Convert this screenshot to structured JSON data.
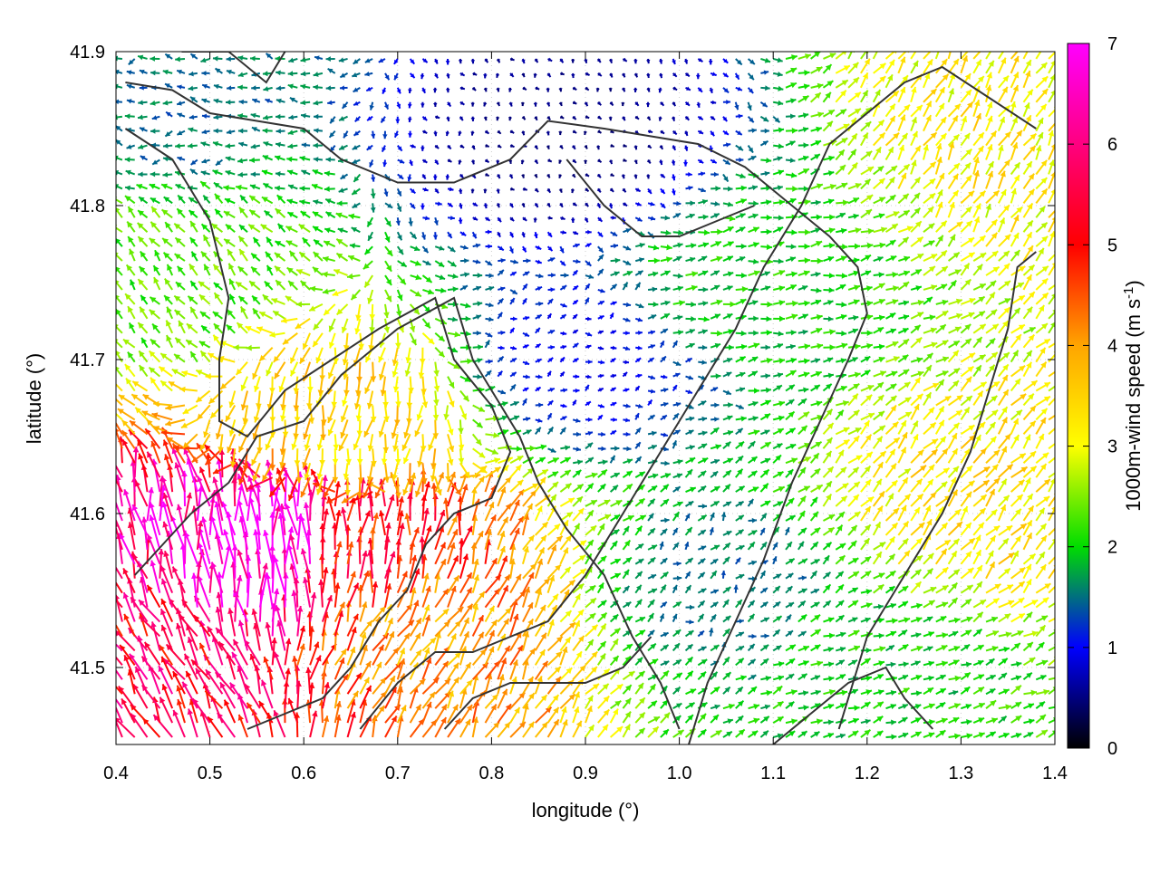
{
  "chart_data": {
    "type": "vector-field",
    "xlabel": "longitude (°)",
    "ylabel": "latitude (°)",
    "xlim": [
      0.4,
      1.4
    ],
    "ylim": [
      41.45,
      41.9
    ],
    "x_ticks": [
      "0.4",
      "0.5",
      "0.6",
      "0.7",
      "0.8",
      "0.9",
      "1.0",
      "1.1",
      "1.2",
      "1.3",
      "1.4"
    ],
    "y_ticks": [
      "41.5",
      "41.6",
      "41.7",
      "41.8",
      "41.9"
    ],
    "grid": true,
    "colorbar": {
      "label": "1000m-wind speed (m s",
      "label_sup": "-1",
      "label_close": ")",
      "range": [
        0,
        7
      ],
      "ticks": [
        "0",
        "1",
        "2",
        "3",
        "4",
        "5",
        "6",
        "7"
      ],
      "colors": [
        "#000000",
        "#0000ff",
        "#00dd00",
        "#ffff00",
        "#ffa500",
        "#ff0000",
        "#ff00ff"
      ]
    },
    "wind_regions": [
      {
        "lon": 0.56,
        "lat": 41.57,
        "speed": 7.0,
        "dir_deg": 95
      },
      {
        "lon": 0.45,
        "lat": 41.5,
        "speed": 5.5,
        "dir_deg": 120
      },
      {
        "lon": 0.66,
        "lat": 41.56,
        "speed": 5.0,
        "dir_deg": 85
      },
      {
        "lon": 0.64,
        "lat": 41.66,
        "speed": 3.5,
        "dir_deg": 260
      },
      {
        "lon": 0.72,
        "lat": 41.52,
        "speed": 4.0,
        "dir_deg": 60
      },
      {
        "lon": 0.9,
        "lat": 41.7,
        "speed": 1.0,
        "dir_deg": 20
      },
      {
        "lon": 0.88,
        "lat": 41.84,
        "speed": 0.5,
        "dir_deg": 300
      },
      {
        "lon": 0.45,
        "lat": 41.75,
        "speed": 2.3,
        "dir_deg": 130
      },
      {
        "lon": 1.05,
        "lat": 41.75,
        "speed": 2.0,
        "dir_deg": 10
      },
      {
        "lon": 1.3,
        "lat": 41.6,
        "speed": 3.3,
        "dir_deg": 50
      },
      {
        "lon": 1.35,
        "lat": 41.85,
        "speed": 3.2,
        "dir_deg": 60
      },
      {
        "lon": 1.05,
        "lat": 41.55,
        "speed": 1.5,
        "dir_deg": 40
      },
      {
        "lon": 1.2,
        "lat": 41.5,
        "speed": 2.0,
        "dir_deg": 20
      },
      {
        "lon": 0.45,
        "lat": 41.87,
        "speed": 1.5,
        "dir_deg": 180
      }
    ],
    "contours": [
      [
        [
          0.41,
          41.88
        ],
        [
          0.46,
          41.875
        ],
        [
          0.5,
          41.86
        ],
        [
          0.55,
          41.855
        ],
        [
          0.6,
          41.85
        ],
        [
          0.64,
          41.83
        ],
        [
          0.7,
          41.815
        ],
        [
          0.76,
          41.815
        ],
        [
          0.82,
          41.83
        ],
        [
          0.86,
          41.855
        ],
        [
          0.92,
          41.85
        ],
        [
          0.97,
          41.845
        ],
        [
          1.02,
          41.84
        ],
        [
          1.07,
          41.825
        ],
        [
          1.12,
          41.8
        ],
        [
          1.16,
          41.78
        ],
        [
          1.19,
          41.76
        ],
        [
          1.2,
          41.73
        ],
        [
          1.18,
          41.7
        ],
        [
          1.15,
          41.66
        ],
        [
          1.12,
          41.62
        ],
        [
          1.09,
          41.57
        ],
        [
          1.06,
          41.53
        ],
        [
          1.03,
          41.49
        ],
        [
          1.01,
          41.45
        ]
      ],
      [
        [
          0.41,
          41.85
        ],
        [
          0.46,
          41.83
        ],
        [
          0.5,
          41.79
        ],
        [
          0.52,
          41.74
        ],
        [
          0.51,
          41.7
        ],
        [
          0.51,
          41.66
        ],
        [
          0.54,
          41.65
        ],
        [
          0.58,
          41.68
        ],
        [
          0.63,
          41.7
        ],
        [
          0.68,
          41.72
        ],
        [
          0.74,
          41.74
        ],
        [
          0.76,
          41.7
        ],
        [
          0.8,
          41.67
        ],
        [
          0.82,
          41.64
        ],
        [
          0.8,
          41.61
        ],
        [
          0.76,
          41.6
        ],
        [
          0.73,
          41.58
        ],
        [
          0.71,
          41.55
        ],
        [
          0.68,
          41.53
        ],
        [
          0.65,
          41.5
        ],
        [
          0.62,
          41.48
        ],
        [
          0.58,
          41.47
        ],
        [
          0.54,
          41.46
        ]
      ],
      [
        [
          0.42,
          41.56
        ],
        [
          0.45,
          41.58
        ],
        [
          0.48,
          41.6
        ],
        [
          0.52,
          41.62
        ],
        [
          0.55,
          41.65
        ],
        [
          0.6,
          41.66
        ],
        [
          0.64,
          41.69
        ],
        [
          0.7,
          41.72
        ],
        [
          0.76,
          41.74
        ],
        [
          0.78,
          41.7
        ],
        [
          0.8,
          41.68
        ],
        [
          0.83,
          41.65
        ],
        [
          0.85,
          41.62
        ],
        [
          0.88,
          41.59
        ],
        [
          0.92,
          41.56
        ],
        [
          0.95,
          41.52
        ],
        [
          0.98,
          41.49
        ],
        [
          1.0,
          41.46
        ]
      ],
      [
        [
          0.66,
          41.46
        ],
        [
          0.7,
          41.49
        ],
        [
          0.74,
          41.51
        ],
        [
          0.78,
          41.51
        ],
        [
          0.82,
          41.52
        ],
        [
          0.86,
          41.53
        ],
        [
          0.9,
          41.56
        ],
        [
          0.94,
          41.6
        ],
        [
          0.98,
          41.64
        ],
        [
          1.02,
          41.68
        ],
        [
          1.06,
          41.72
        ],
        [
          1.09,
          41.76
        ],
        [
          1.13,
          41.8
        ],
        [
          1.16,
          41.84
        ],
        [
          1.2,
          41.86
        ],
        [
          1.24,
          41.88
        ],
        [
          1.28,
          41.89
        ],
        [
          1.33,
          41.87
        ],
        [
          1.38,
          41.85
        ]
      ],
      [
        [
          1.1,
          41.45
        ],
        [
          1.14,
          41.47
        ],
        [
          1.18,
          41.49
        ],
        [
          1.22,
          41.5
        ],
        [
          1.24,
          41.48
        ],
        [
          1.27,
          41.46
        ]
      ],
      [
        [
          1.17,
          41.46
        ],
        [
          1.2,
          41.52
        ],
        [
          1.24,
          41.56
        ],
        [
          1.28,
          41.6
        ],
        [
          1.31,
          41.64
        ],
        [
          1.33,
          41.68
        ],
        [
          1.35,
          41.72
        ],
        [
          1.36,
          41.76
        ],
        [
          1.38,
          41.77
        ]
      ],
      [
        [
          0.75,
          41.46
        ],
        [
          0.78,
          41.48
        ],
        [
          0.82,
          41.49
        ],
        [
          0.86,
          41.49
        ],
        [
          0.9,
          41.49
        ],
        [
          0.94,
          41.5
        ],
        [
          0.97,
          41.52
        ]
      ],
      [
        [
          0.88,
          41.83
        ],
        [
          0.92,
          41.8
        ],
        [
          0.96,
          41.78
        ],
        [
          1.0,
          41.78
        ],
        [
          1.04,
          41.79
        ],
        [
          1.08,
          41.8
        ]
      ],
      [
        [
          0.47,
          41.9
        ],
        [
          0.52,
          41.9
        ],
        [
          0.56,
          41.88
        ],
        [
          0.58,
          41.9
        ]
      ]
    ]
  }
}
